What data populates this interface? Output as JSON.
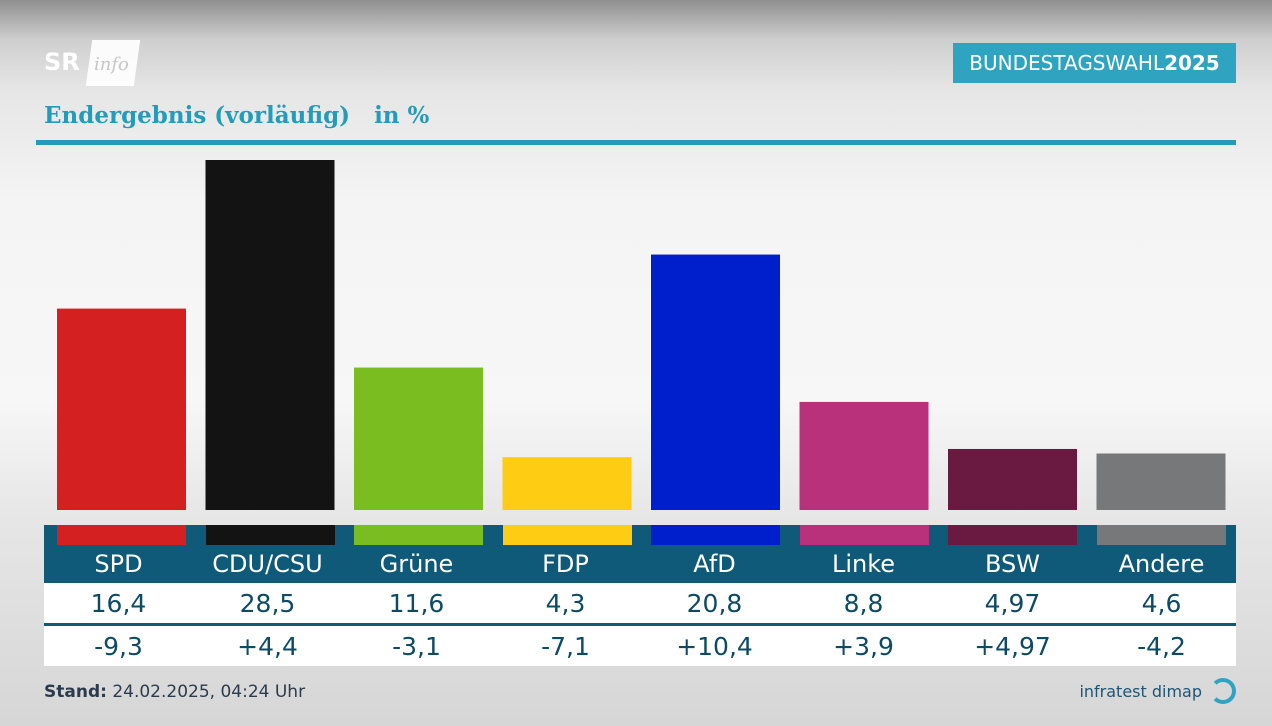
{
  "broadcaster": {
    "logo_text_1": "SR",
    "logo_text_2": "info"
  },
  "badge": {
    "text_light": "BUNDESTAGSWAHL",
    "text_bold": "2025"
  },
  "subtitle": "Endergebnis (vorläufig)   in %",
  "colors": {
    "accent": "#239cbc",
    "table_header": "#0f5a78",
    "badge": "#2fa4c1"
  },
  "chart_data": {
    "type": "bar",
    "title": "Endergebnis (vorläufig)   in %",
    "categories": [
      "SPD",
      "CDU/CSU",
      "Grüne",
      "FDP",
      "AfD",
      "Linke",
      "BSW",
      "Andere"
    ],
    "values": [
      16.4,
      28.5,
      11.6,
      4.3,
      20.8,
      8.8,
      4.97,
      4.6
    ],
    "value_labels": [
      "16,4",
      "28,5",
      "11,6",
      "4,3",
      "20,8",
      "8,8",
      "4,97",
      "4,6"
    ],
    "change_labels": [
      "-9,3",
      "+4,4",
      "-3,1",
      "-7,1",
      "+10,4",
      "+3,9",
      "+4,97",
      "-4,2"
    ],
    "changes": [
      -9.3,
      4.4,
      -3.1,
      -7.1,
      10.4,
      3.9,
      4.97,
      -4.2
    ],
    "bar_colors": [
      "#d42020",
      "#131313",
      "#79bd21",
      "#fecc12",
      "#001fcc",
      "#b8317a",
      "#6a1940",
      "#777879"
    ],
    "ylim": [
      0,
      28.5
    ],
    "grid": false,
    "legend": "none"
  },
  "footer": {
    "label": "Stand:",
    "timestamp": "24.02.2025, 04:24 Uhr"
  },
  "source": {
    "text": "infratest dimap",
    "icon": "infratest-dimap-logo-icon"
  }
}
